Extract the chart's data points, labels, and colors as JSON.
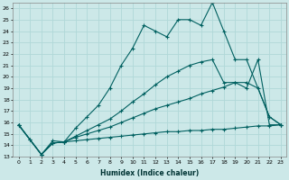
{
  "xlabel": "Humidex (Indice chaleur)",
  "bg_color": "#cce8e8",
  "grid_color": "#b0d8d8",
  "line_color": "#006060",
  "xlim": [
    -0.5,
    23.5
  ],
  "ylim": [
    13.0,
    26.5
  ],
  "yticks": [
    13,
    14,
    15,
    16,
    17,
    18,
    19,
    20,
    21,
    22,
    23,
    24,
    25,
    26
  ],
  "xticks": [
    0,
    1,
    2,
    3,
    4,
    5,
    6,
    7,
    8,
    9,
    10,
    11,
    12,
    13,
    14,
    15,
    16,
    17,
    18,
    19,
    20,
    21,
    22,
    23
  ],
  "series": [
    {
      "x": [
        0,
        1,
        2,
        3,
        4,
        5,
        6,
        7,
        8,
        9,
        10,
        11,
        12,
        13,
        14,
        15,
        16,
        17,
        18,
        19,
        20,
        22,
        23
      ],
      "y": [
        15.8,
        14.5,
        13.2,
        14.4,
        14.3,
        15.5,
        16.5,
        17.5,
        19.0,
        21.0,
        22.5,
        24.5,
        24.0,
        23.5,
        25.0,
        25.0,
        24.5,
        26.5,
        24.0,
        21.5,
        21.5,
        16.5,
        15.8
      ]
    },
    {
      "x": [
        0,
        1,
        2,
        3,
        4,
        5,
        6,
        7,
        8,
        9,
        10,
        11,
        12,
        13,
        14,
        15,
        16,
        17,
        18,
        19,
        20,
        21,
        22,
        23
      ],
      "y": [
        15.8,
        14.5,
        13.2,
        14.2,
        14.3,
        14.8,
        15.3,
        15.8,
        16.3,
        17.0,
        17.8,
        18.5,
        19.3,
        20.0,
        20.5,
        21.0,
        21.3,
        21.5,
        19.5,
        19.5,
        19.0,
        21.5,
        15.8,
        15.8
      ]
    },
    {
      "x": [
        0,
        2,
        3,
        4,
        5,
        6,
        7,
        8,
        9,
        10,
        11,
        12,
        13,
        14,
        15,
        16,
        17,
        18,
        19,
        20,
        21,
        22,
        23
      ],
      "y": [
        15.8,
        13.2,
        14.2,
        14.3,
        14.7,
        15.0,
        15.3,
        15.6,
        16.0,
        16.4,
        16.8,
        17.2,
        17.5,
        17.8,
        18.1,
        18.5,
        18.8,
        19.1,
        19.5,
        19.5,
        19.0,
        16.5,
        15.8
      ]
    },
    {
      "x": [
        0,
        2,
        3,
        4,
        5,
        6,
        7,
        8,
        9,
        10,
        11,
        12,
        13,
        14,
        15,
        16,
        17,
        18,
        19,
        20,
        21,
        22,
        23
      ],
      "y": [
        15.8,
        13.2,
        14.2,
        14.3,
        14.4,
        14.5,
        14.6,
        14.7,
        14.8,
        14.9,
        15.0,
        15.1,
        15.2,
        15.2,
        15.3,
        15.3,
        15.4,
        15.4,
        15.5,
        15.6,
        15.7,
        15.7,
        15.8
      ]
    }
  ]
}
